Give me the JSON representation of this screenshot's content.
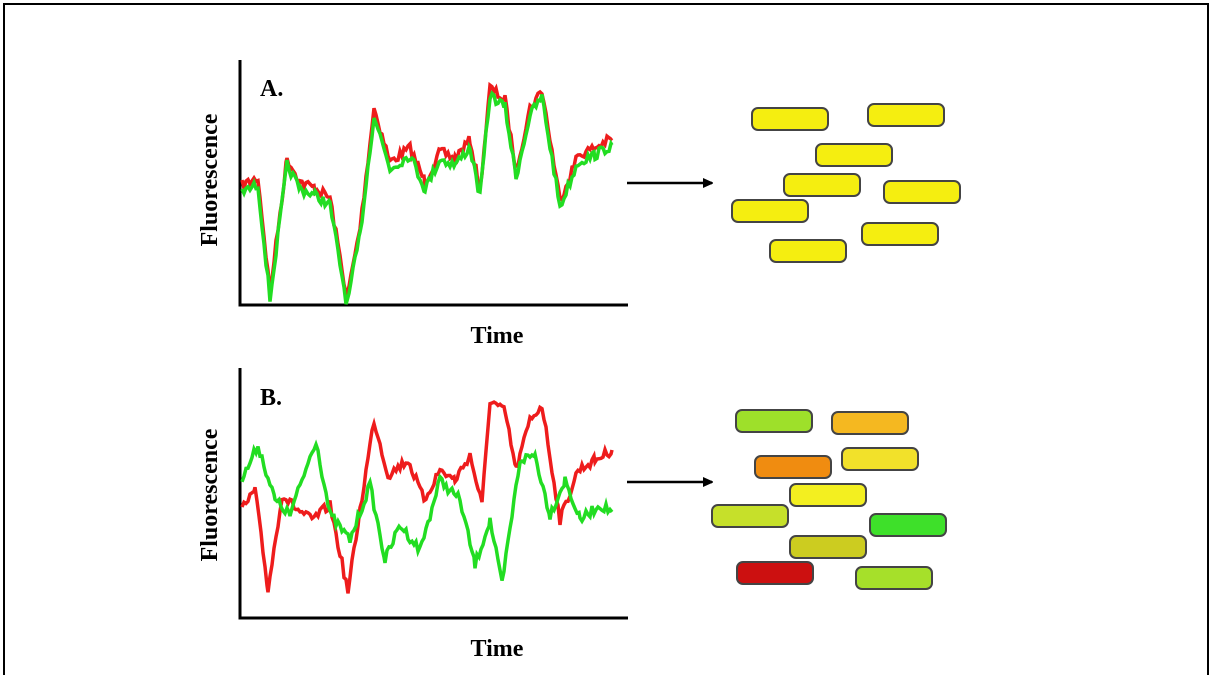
{
  "panels": [
    {
      "label": "A.",
      "y_label": "Fluorescence",
      "x_label": "Time"
    },
    {
      "label": "B.",
      "y_label": "Fluorescence",
      "x_label": "Time"
    }
  ]
}
